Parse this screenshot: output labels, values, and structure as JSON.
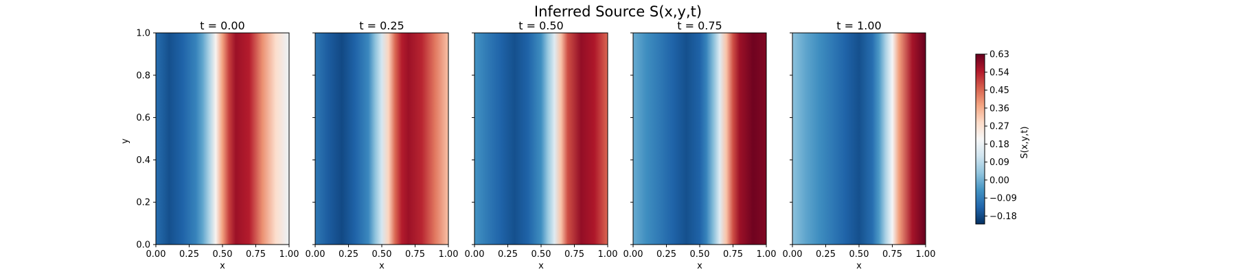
{
  "figure": {
    "suptitle": "Inferred Source S(x,y,t)"
  },
  "colors": {
    "colormap": "RdBu_r",
    "cmap_stops": [
      "#053061",
      "#2166ac",
      "#4393c3",
      "#92c5de",
      "#d1e5f0",
      "#f7f7f7",
      "#fddbc7",
      "#f4a582",
      "#d6604d",
      "#b2182b",
      "#67001f"
    ]
  },
  "chart_data": {
    "type": "heatmap",
    "title": "Inferred Source S(x,y,t)",
    "xlabel": "x",
    "ylabel": "y",
    "xlim": [
      0,
      1
    ],
    "ylim": [
      0,
      1
    ],
    "x_ticks": [
      "0.00",
      "0.25",
      "0.50",
      "0.75",
      "1.00"
    ],
    "y_ticks": [
      "0.0",
      "0.2",
      "0.4",
      "0.6",
      "0.8",
      "1.0"
    ],
    "grid": false,
    "panels": [
      {
        "title": "t = 0.00",
        "t": 0.0,
        "x": [
          0.0,
          0.1,
          0.2,
          0.3,
          0.35,
          0.4,
          0.45,
          0.5,
          0.55,
          0.6,
          0.7,
          0.8,
          0.9,
          1.0
        ],
        "s": [
          -0.12,
          -0.17,
          -0.14,
          -0.08,
          -0.02,
          0.07,
          0.22,
          0.38,
          0.5,
          0.57,
          0.54,
          0.4,
          0.28,
          0.18
        ]
      },
      {
        "title": "t = 0.25",
        "t": 0.25,
        "x": [
          0.0,
          0.1,
          0.2,
          0.3,
          0.4,
          0.45,
          0.5,
          0.55,
          0.6,
          0.65,
          0.7,
          0.8,
          0.9,
          1.0
        ],
        "s": [
          -0.1,
          -0.15,
          -0.18,
          -0.14,
          -0.07,
          0.03,
          0.13,
          0.3,
          0.45,
          0.54,
          0.57,
          0.53,
          0.43,
          0.33
        ]
      },
      {
        "title": "t = 0.50",
        "t": 0.5,
        "x": [
          0.0,
          0.1,
          0.2,
          0.3,
          0.4,
          0.5,
          0.55,
          0.6,
          0.65,
          0.7,
          0.8,
          0.9,
          1.0
        ],
        "s": [
          -0.05,
          -0.1,
          -0.14,
          -0.17,
          -0.14,
          -0.06,
          0.04,
          0.15,
          0.33,
          0.48,
          0.58,
          0.55,
          0.45
        ]
      },
      {
        "title": "t = 0.75",
        "t": 0.75,
        "x": [
          0.0,
          0.1,
          0.2,
          0.3,
          0.4,
          0.5,
          0.55,
          0.6,
          0.65,
          0.7,
          0.75,
          0.8,
          0.9,
          1.0
        ],
        "s": [
          -0.01,
          -0.06,
          -0.1,
          -0.14,
          -0.17,
          -0.14,
          -0.08,
          0.02,
          0.15,
          0.33,
          0.48,
          0.57,
          0.62,
          0.6
        ]
      },
      {
        "title": "t = 1.00",
        "t": 1.0,
        "x": [
          0.0,
          0.1,
          0.2,
          0.3,
          0.4,
          0.5,
          0.6,
          0.65,
          0.7,
          0.75,
          0.8,
          0.9,
          1.0
        ],
        "s": [
          0.03,
          -0.02,
          -0.06,
          -0.1,
          -0.14,
          -0.17,
          -0.12,
          -0.04,
          0.07,
          0.2,
          0.38,
          0.56,
          0.63
        ]
      }
    ],
    "colorbar": {
      "label": "S(x,y,t)",
      "vmin": -0.22,
      "vmax": 0.63,
      "ticks": [
        0.63,
        0.54,
        0.45,
        0.36,
        0.27,
        0.18,
        0.09,
        0.0,
        -0.09,
        -0.18
      ],
      "tick_labels": [
        "0.63",
        "0.54",
        "0.45",
        "0.36",
        "0.27",
        "0.18",
        "0.09",
        "0.00",
        "−0.09",
        "−0.18"
      ]
    }
  }
}
